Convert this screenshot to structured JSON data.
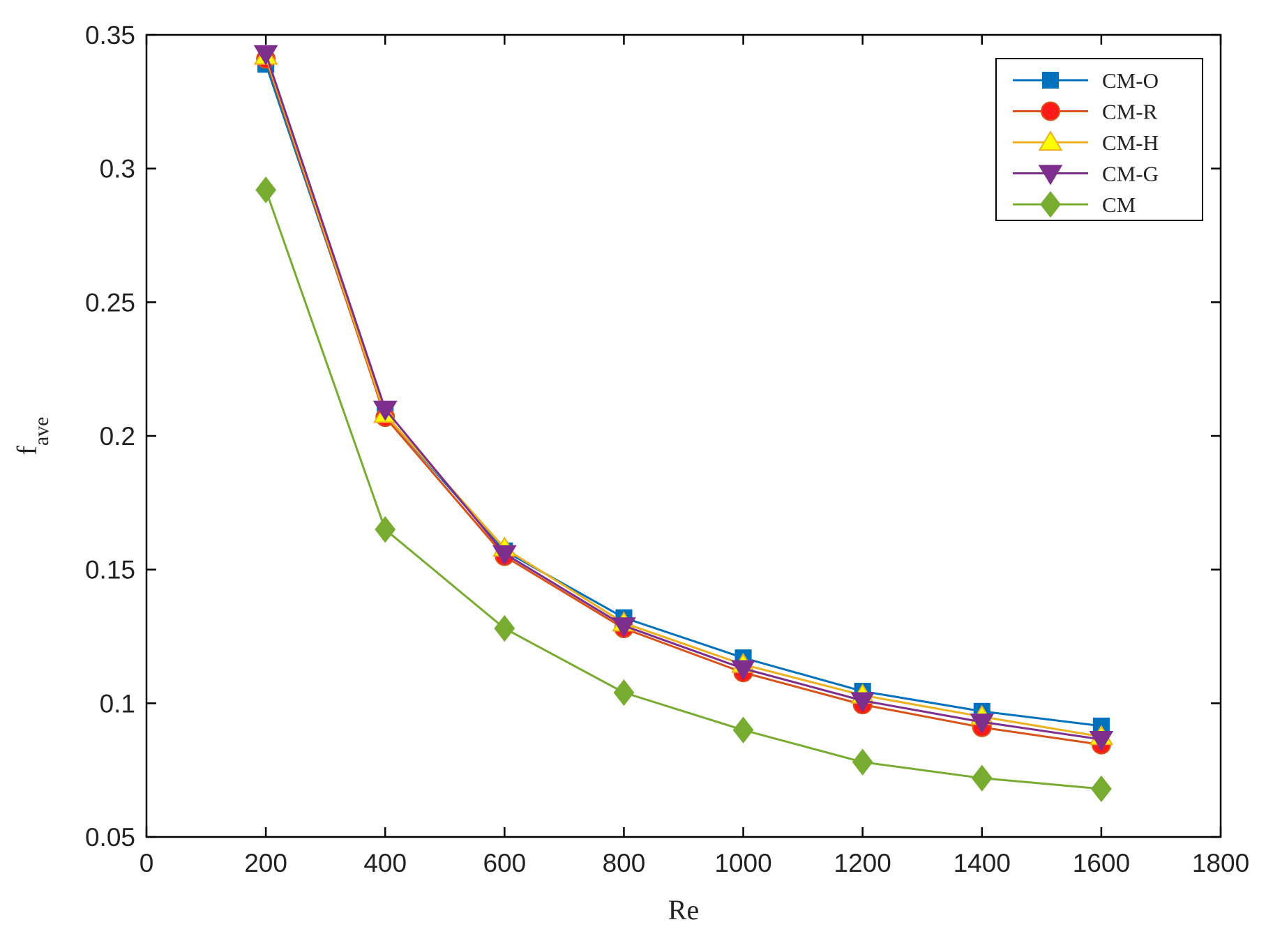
{
  "chart_data": {
    "type": "line",
    "title": "",
    "xlabel": "Re",
    "ylabel": {
      "main": "f",
      "subscript": "ave"
    },
    "xlim": [
      0,
      1800
    ],
    "ylim": [
      0.05,
      0.35
    ],
    "xticks": [
      0,
      200,
      400,
      600,
      800,
      1000,
      1200,
      1400,
      1600,
      1800
    ],
    "xtick_labels": [
      "0",
      "200",
      "400",
      "600",
      "800",
      "1000",
      "1200",
      "1400",
      "1600",
      "1800"
    ],
    "yticks": [
      0.05,
      0.1,
      0.15,
      0.2,
      0.25,
      0.3,
      0.35
    ],
    "ytick_labels": [
      "0.05",
      "0.1",
      "0.15",
      "0.2",
      "0.25",
      "0.3",
      "0.35"
    ],
    "grid": false,
    "legend_position": "top-right",
    "x": [
      200,
      400,
      600,
      800,
      1000,
      1200,
      1400,
      1600
    ],
    "series": [
      {
        "name": "CM-O",
        "color": "#0072BD",
        "marker": "square",
        "values": [
          0.339,
          0.208,
          0.157,
          0.132,
          0.117,
          0.1045,
          0.097,
          0.0915
        ]
      },
      {
        "name": "CM-R",
        "color": "#D95319",
        "marker": "circle",
        "marker_fill": "#FF1A1A",
        "values": [
          0.341,
          0.207,
          0.155,
          0.128,
          0.1115,
          0.0995,
          0.091,
          0.0845
        ]
      },
      {
        "name": "CM-H",
        "color": "#EDB120",
        "marker": "triangle-up",
        "marker_fill": "#FFFF00",
        "values": [
          0.342,
          0.208,
          0.158,
          0.13,
          0.1145,
          0.103,
          0.095,
          0.0875
        ]
      },
      {
        "name": "CM-G",
        "color": "#7E2F8E",
        "marker": "triangle-down",
        "values": [
          0.343,
          0.21,
          0.156,
          0.129,
          0.113,
          0.101,
          0.093,
          0.0865
        ]
      },
      {
        "name": "CM",
        "color": "#77AC30",
        "marker": "diamond",
        "values": [
          0.292,
          0.165,
          0.128,
          0.104,
          0.09,
          0.078,
          0.072,
          0.068
        ]
      }
    ]
  }
}
